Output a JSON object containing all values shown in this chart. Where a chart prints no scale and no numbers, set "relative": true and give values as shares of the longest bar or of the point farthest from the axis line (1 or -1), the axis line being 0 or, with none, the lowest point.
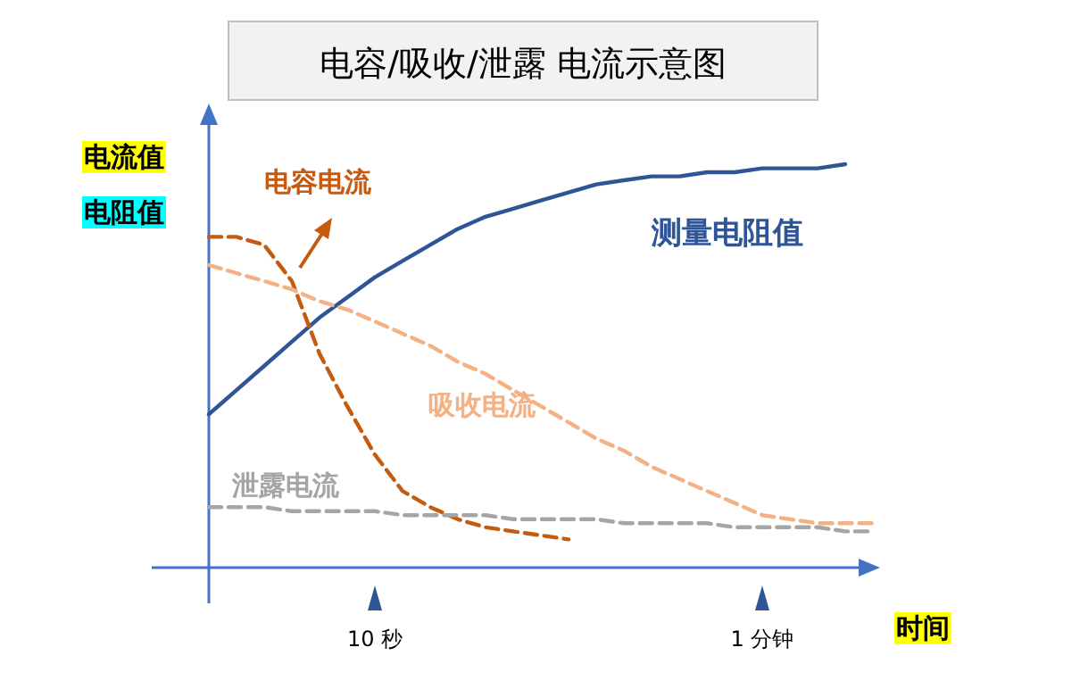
{
  "chart_data": {
    "type": "line",
    "relative": true,
    "title": "电容/吸收/泄露 电流示意图",
    "xlabel": "时间",
    "ylabel": "电流值",
    "annotations": [
      "电阻值"
    ],
    "categories": [
      null,
      null,
      null,
      null,
      null,
      null,
      "10 秒",
      null,
      null,
      null,
      null,
      null,
      null,
      null,
      null,
      null,
      null,
      null,
      null,
      null,
      "1 分钟",
      null,
      null,
      null,
      null
    ],
    "series": [
      {
        "name": "测量电阻值",
        "color": "#2f5597",
        "line_style": "solid",
        "values": [
          0.38,
          0.44,
          0.5,
          0.56,
          0.62,
          0.67,
          0.72,
          0.76,
          0.8,
          0.84,
          0.87,
          0.89,
          0.91,
          0.93,
          0.95,
          0.96,
          0.97,
          0.97,
          0.98,
          0.98,
          0.99,
          0.99,
          0.99,
          1.0,
          null
        ]
      },
      {
        "name": "电容电流",
        "color": "#c55a11",
        "line_style": "dashed",
        "values": [
          0.82,
          0.82,
          0.8,
          0.71,
          0.53,
          0.4,
          0.28,
          0.19,
          0.15,
          0.12,
          0.1,
          0.09,
          0.08,
          0.07,
          null,
          null,
          null,
          null,
          null,
          null,
          null,
          null,
          null,
          null,
          null
        ]
      },
      {
        "name": "吸收电流",
        "color": "#f4b183",
        "line_style": "dashed",
        "values": [
          0.75,
          0.73,
          0.71,
          0.69,
          0.66,
          0.64,
          0.61,
          0.58,
          0.55,
          0.51,
          0.48,
          0.44,
          0.4,
          0.36,
          0.32,
          0.29,
          0.25,
          0.22,
          0.19,
          0.16,
          0.13,
          0.12,
          0.11,
          0.11,
          0.11
        ]
      },
      {
        "name": "泄露电流",
        "color": "#a5a5a5",
        "line_style": "dashed",
        "values": [
          0.15,
          0.15,
          0.15,
          0.14,
          0.14,
          0.14,
          0.14,
          0.13,
          0.13,
          0.13,
          0.13,
          0.12,
          0.12,
          0.12,
          0.12,
          0.11,
          0.11,
          0.11,
          0.11,
          0.1,
          0.1,
          0.1,
          0.1,
          0.09,
          0.09
        ]
      }
    ]
  }
}
